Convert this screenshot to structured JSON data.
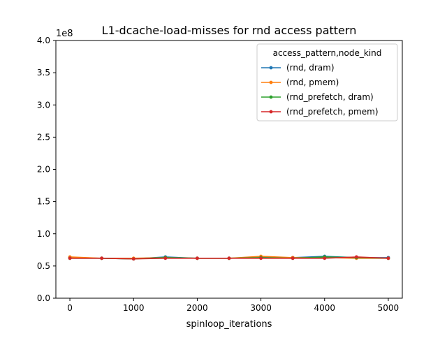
{
  "chart_data": {
    "type": "line",
    "title": "L1-dcache-load-misses for rnd access pattern",
    "xlabel": "spinloop_iterations",
    "ylabel": "",
    "y_offset_label": "1e8",
    "xlim": [
      -220,
      5220
    ],
    "ylim": [
      0.0,
      4.0
    ],
    "x_ticks": [
      0,
      1000,
      2000,
      3000,
      4000,
      5000
    ],
    "x_tick_labels": [
      "0",
      "1000",
      "2000",
      "3000",
      "4000",
      "5000"
    ],
    "y_ticks": [
      0.0,
      0.5,
      1.0,
      1.5,
      2.0,
      2.5,
      3.0,
      3.5,
      4.0
    ],
    "y_tick_labels": [
      "0.0",
      "0.5",
      "1.0",
      "1.5",
      "2.0",
      "2.5",
      "3.0",
      "3.5",
      "4.0"
    ],
    "grid": false,
    "legend": {
      "title": "access_pattern,node_kind",
      "placement": "top-right"
    },
    "x": [
      0,
      500,
      1000,
      1500,
      2000,
      2500,
      3000,
      3500,
      4000,
      4500,
      5000
    ],
    "series": [
      {
        "name": "(rnd, dram)",
        "color": "#1f77b4",
        "values": [
          0.63,
          0.62,
          0.61,
          0.64,
          0.62,
          0.62,
          0.63,
          0.63,
          0.65,
          0.63,
          0.63
        ]
      },
      {
        "name": "(rnd, pmem)",
        "color": "#ff7f0e",
        "values": [
          0.64,
          0.62,
          0.62,
          0.63,
          0.62,
          0.62,
          0.65,
          0.63,
          0.63,
          0.62,
          0.62
        ]
      },
      {
        "name": "(rnd_prefetch, dram)",
        "color": "#2ca02c",
        "values": [
          0.62,
          0.62,
          0.61,
          0.63,
          0.62,
          0.62,
          0.63,
          0.62,
          0.64,
          0.63,
          0.62
        ]
      },
      {
        "name": "(rnd_prefetch, pmem)",
        "color": "#d62728",
        "values": [
          0.62,
          0.62,
          0.61,
          0.62,
          0.62,
          0.62,
          0.62,
          0.62,
          0.62,
          0.64,
          0.62
        ]
      }
    ]
  }
}
